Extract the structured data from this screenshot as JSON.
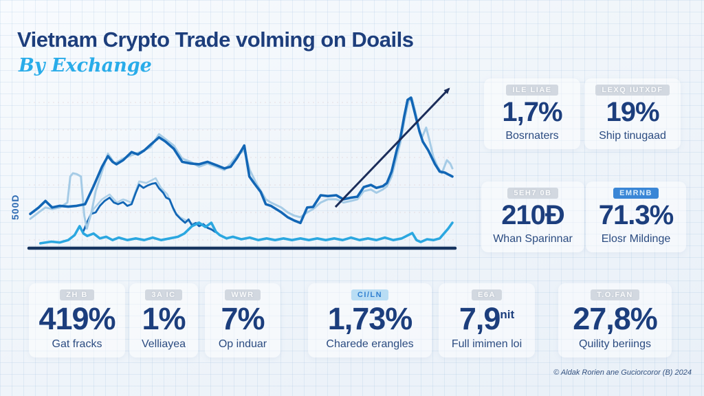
{
  "header": {
    "title": "Vietnam Crypto Trade volming on Doails",
    "subtitle": "By  Exchange"
  },
  "footer": {
    "credit": "© Aldak Rorien ane Guciorcoror (B) 2024"
  },
  "chart_data": {
    "type": "line",
    "title": "Vietnam Crypto Trade volming on Doails — By Exchange",
    "xlabel": "",
    "ylabel": "500D",
    "x_tick_labels": [],
    "ylim": [
      0,
      1
    ],
    "grid": "fine blue graph-paper background with faint dashed horizontal rules",
    "legend_position": "none",
    "baseline_color": "#16345f",
    "grid_rule_color": "#dcc9cc",
    "trend_arrow": {
      "from": [
        72.3,
        0.253
      ],
      "to": [
        99.2,
        0.979
      ],
      "color": "#1b2d5a",
      "width": 3
    },
    "series": [
      {
        "name": "mid-exchange-shadow",
        "color": "#aed0e8",
        "width": 2.6,
        "points": [
          [
            13,
            0.12
          ],
          [
            15,
            0.24
          ],
          [
            17,
            0.3
          ],
          [
            18.8,
            0.33
          ],
          [
            20.5,
            0.28
          ],
          [
            22,
            0.3
          ],
          [
            24,
            0.28
          ],
          [
            25.8,
            0.41
          ],
          [
            27.5,
            0.4
          ],
          [
            29.7,
            0.43
          ],
          [
            31,
            0.37
          ],
          [
            32.5,
            0.33
          ],
          [
            34,
            0.23
          ],
          [
            35.5,
            0.19
          ],
          [
            37,
            0.17
          ],
          [
            38.5,
            0.15
          ],
          [
            40,
            0.16
          ],
          [
            41.5,
            0.13
          ],
          [
            43,
            0.12
          ]
        ]
      },
      {
        "name": "mid-exchange",
        "color": "#1266b5",
        "width": 2.8,
        "points": [
          [
            12.6,
            0.105
          ],
          [
            13.5,
            0.16
          ],
          [
            14.4,
            0.21
          ],
          [
            15.5,
            0.22
          ],
          [
            16.5,
            0.26
          ],
          [
            17.6,
            0.29
          ],
          [
            18.8,
            0.31
          ],
          [
            19.8,
            0.28
          ],
          [
            20.8,
            0.27
          ],
          [
            22,
            0.283
          ],
          [
            23,
            0.26
          ],
          [
            24,
            0.27
          ],
          [
            25,
            0.34
          ],
          [
            25.8,
            0.39
          ],
          [
            26.8,
            0.37
          ],
          [
            27.8,
            0.385
          ],
          [
            28.8,
            0.395
          ],
          [
            29.7,
            0.4
          ],
          [
            30.5,
            0.367
          ],
          [
            31.5,
            0.34
          ],
          [
            32.2,
            0.31
          ],
          [
            33,
            0.3
          ],
          [
            33.8,
            0.25
          ],
          [
            34.6,
            0.207
          ],
          [
            35.6,
            0.18
          ],
          [
            36.7,
            0.156
          ],
          [
            37.5,
            0.177
          ],
          [
            38.3,
            0.14
          ],
          [
            39.2,
            0.155
          ],
          [
            40,
            0.135
          ],
          [
            41,
            0.148
          ],
          [
            42,
            0.125
          ],
          [
            43,
            0.114
          ],
          [
            43.8,
            0.1
          ]
        ]
      },
      {
        "name": "main-exchange-shadow",
        "color": "#a5cbe6",
        "width": 3,
        "points": [
          [
            0,
            0.18
          ],
          [
            2,
            0.22
          ],
          [
            3.6,
            0.25
          ],
          [
            5.2,
            0.24
          ],
          [
            7,
            0.25
          ],
          [
            8.8,
            0.28
          ],
          [
            9.5,
            0.44
          ],
          [
            10.1,
            0.46
          ],
          [
            11,
            0.455
          ],
          [
            12,
            0.44
          ],
          [
            12.8,
            0.2
          ],
          [
            13.4,
            0.12
          ],
          [
            14.5,
            0.22
          ],
          [
            15.5,
            0.35
          ],
          [
            17,
            0.47
          ],
          [
            18.4,
            0.58
          ],
          [
            20,
            0.52
          ],
          [
            22,
            0.55
          ],
          [
            24,
            0.57
          ],
          [
            26,
            0.59
          ],
          [
            28.5,
            0.62
          ],
          [
            30.5,
            0.7
          ],
          [
            32,
            0.67
          ],
          [
            34,
            0.63
          ],
          [
            36,
            0.55
          ],
          [
            38,
            0.53
          ],
          [
            40,
            0.5
          ],
          [
            42,
            0.52
          ],
          [
            44,
            0.5
          ],
          [
            46,
            0.48
          ],
          [
            47.5,
            0.52
          ],
          [
            49,
            0.57
          ],
          [
            50.7,
            0.6
          ],
          [
            52,
            0.48
          ],
          [
            53.5,
            0.4
          ],
          [
            55.8,
            0.3
          ],
          [
            57,
            0.28
          ],
          [
            59.5,
            0.25
          ],
          [
            61,
            0.22
          ],
          [
            62.5,
            0.2
          ],
          [
            64,
            0.19
          ],
          [
            65.6,
            0.22
          ],
          [
            67,
            0.24
          ],
          [
            68.8,
            0.28
          ],
          [
            70.5,
            0.3
          ],
          [
            72.5,
            0.3
          ],
          [
            74.2,
            0.28
          ],
          [
            76,
            0.29
          ],
          [
            77.5,
            0.3
          ],
          [
            79,
            0.35
          ],
          [
            80.7,
            0.36
          ],
          [
            82,
            0.34
          ],
          [
            83.5,
            0.36
          ],
          [
            84.5,
            0.38
          ],
          [
            85.6,
            0.44
          ],
          [
            86.8,
            0.56
          ],
          [
            87.7,
            0.65
          ],
          [
            88.6,
            0.78
          ],
          [
            89.6,
            0.9
          ],
          [
            90.4,
            0.92
          ],
          [
            91.2,
            0.84
          ],
          [
            92,
            0.74
          ],
          [
            92.8,
            0.68
          ],
          [
            93.8,
            0.74
          ],
          [
            94.6,
            0.66
          ],
          [
            95.5,
            0.56
          ],
          [
            96.5,
            0.5
          ],
          [
            97.5,
            0.46
          ],
          [
            98.7,
            0.54
          ],
          [
            99.5,
            0.52
          ],
          [
            100,
            0.49
          ]
        ]
      },
      {
        "name": "main-exchange",
        "color": "#1266b5",
        "width": 3.6,
        "points": [
          [
            0,
            0.21
          ],
          [
            2,
            0.25
          ],
          [
            3.6,
            0.29
          ],
          [
            5.2,
            0.25
          ],
          [
            7,
            0.26
          ],
          [
            9,
            0.255
          ],
          [
            11,
            0.26
          ],
          [
            13,
            0.27
          ],
          [
            15,
            0.38
          ],
          [
            17,
            0.5
          ],
          [
            18.4,
            0.565
          ],
          [
            19.5,
            0.53
          ],
          [
            20.4,
            0.515
          ],
          [
            22,
            0.54
          ],
          [
            24,
            0.59
          ],
          [
            25.5,
            0.575
          ],
          [
            27,
            0.6
          ],
          [
            28.5,
            0.635
          ],
          [
            30.5,
            0.68
          ],
          [
            32,
            0.655
          ],
          [
            34,
            0.61
          ],
          [
            36,
            0.53
          ],
          [
            38,
            0.52
          ],
          [
            40,
            0.515
          ],
          [
            42,
            0.53
          ],
          [
            44,
            0.51
          ],
          [
            46,
            0.49
          ],
          [
            47.5,
            0.5
          ],
          [
            49,
            0.555
          ],
          [
            50.7,
            0.63
          ],
          [
            51.9,
            0.44
          ],
          [
            53,
            0.4
          ],
          [
            54.6,
            0.345
          ],
          [
            55.8,
            0.27
          ],
          [
            57,
            0.26
          ],
          [
            59.5,
            0.22
          ],
          [
            61,
            0.19
          ],
          [
            62.5,
            0.17
          ],
          [
            64,
            0.155
          ],
          [
            65.6,
            0.25
          ],
          [
            67,
            0.253
          ],
          [
            68.8,
            0.325
          ],
          [
            70.5,
            0.32
          ],
          [
            72.5,
            0.325
          ],
          [
            74.2,
            0.3
          ],
          [
            76,
            0.31
          ],
          [
            77.5,
            0.316
          ],
          [
            79,
            0.375
          ],
          [
            80.7,
            0.388
          ],
          [
            82,
            0.37
          ],
          [
            83.5,
            0.38
          ],
          [
            84.5,
            0.4
          ],
          [
            85.6,
            0.47
          ],
          [
            86.8,
            0.6
          ],
          [
            87.7,
            0.68
          ],
          [
            88.6,
            0.81
          ],
          [
            89.4,
            0.91
          ],
          [
            90.2,
            0.924
          ],
          [
            91.4,
            0.8
          ],
          [
            92.2,
            0.717
          ],
          [
            93,
            0.654
          ],
          [
            94.3,
            0.6
          ],
          [
            95.9,
            0.515
          ],
          [
            97,
            0.47
          ],
          [
            98.2,
            0.464
          ],
          [
            99.2,
            0.45
          ],
          [
            100,
            0.44
          ]
        ]
      },
      {
        "name": "low-exchange",
        "color": "#2ba7e0",
        "width": 3.6,
        "points": [
          [
            2.4,
            0.03
          ],
          [
            5,
            0.04
          ],
          [
            7,
            0.035
          ],
          [
            9,
            0.05
          ],
          [
            10.5,
            0.08
          ],
          [
            11.7,
            0.135
          ],
          [
            12.6,
            0.09
          ],
          [
            13.5,
            0.075
          ],
          [
            15,
            0.09
          ],
          [
            16.5,
            0.06
          ],
          [
            18,
            0.07
          ],
          [
            19.5,
            0.05
          ],
          [
            21,
            0.065
          ],
          [
            23,
            0.05
          ],
          [
            25,
            0.06
          ],
          [
            27,
            0.05
          ],
          [
            29,
            0.065
          ],
          [
            31,
            0.05
          ],
          [
            33,
            0.06
          ],
          [
            35,
            0.07
          ],
          [
            36.5,
            0.09
          ],
          [
            38.3,
            0.135
          ],
          [
            40,
            0.156
          ],
          [
            41.5,
            0.13
          ],
          [
            42.9,
            0.156
          ],
          [
            44,
            0.1
          ],
          [
            44.9,
            0.08
          ],
          [
            46.5,
            0.06
          ],
          [
            48,
            0.07
          ],
          [
            50,
            0.055
          ],
          [
            52,
            0.065
          ],
          [
            54,
            0.05
          ],
          [
            56,
            0.06
          ],
          [
            58,
            0.05
          ],
          [
            60,
            0.06
          ],
          [
            62,
            0.05
          ],
          [
            64,
            0.06
          ],
          [
            66,
            0.05
          ],
          [
            68,
            0.06
          ],
          [
            70,
            0.05
          ],
          [
            72,
            0.06
          ],
          [
            74,
            0.05
          ],
          [
            76,
            0.065
          ],
          [
            78,
            0.05
          ],
          [
            80,
            0.06
          ],
          [
            82,
            0.05
          ],
          [
            84,
            0.065
          ],
          [
            86,
            0.05
          ],
          [
            88,
            0.06
          ],
          [
            90.5,
            0.093
          ],
          [
            91.5,
            0.05
          ],
          [
            92.5,
            0.038
          ],
          [
            94,
            0.055
          ],
          [
            95.5,
            0.05
          ],
          [
            97,
            0.06
          ],
          [
            98,
            0.09
          ],
          [
            99,
            0.12
          ],
          [
            100,
            0.156
          ]
        ]
      }
    ]
  },
  "stats_right": [
    {
      "id": "bosrnaters",
      "badge": "ILE LIAE",
      "badge_style": "grey",
      "value": "1,7%",
      "suffix": "",
      "label": "Bosrnaters",
      "pos": "pos-r1"
    },
    {
      "id": "ship-tinugaad",
      "badge": "LEXQ IUTXDF",
      "badge_style": "grey",
      "value": "19%",
      "suffix": "",
      "label": "Ship tinugaad",
      "pos": "pos-r2"
    },
    {
      "id": "whan-sparinnar",
      "badge": "5EH7 0B",
      "badge_style": "grey",
      "value": "210Ð",
      "suffix": "",
      "label": "Whan Sparinnar",
      "pos": "pos-r3"
    },
    {
      "id": "elosr-mildinge",
      "badge": "EMRNB",
      "badge_style": "blue",
      "value": "71.3%",
      "suffix": "",
      "label": "Elosr Mildinge",
      "pos": "pos-r4"
    }
  ],
  "stats_bottom": [
    {
      "id": "gat-fracks",
      "badge": "ZH B",
      "badge_style": "grey",
      "value": "419%",
      "suffix": "",
      "label": "Gat fracks",
      "pos": "pos-b1"
    },
    {
      "id": "velliayea",
      "badge": "3A IC",
      "badge_style": "grey",
      "value": "1%",
      "suffix": "",
      "label": "Velliayea",
      "pos": "pos-b2"
    },
    {
      "id": "op-induar",
      "badge": "WWR",
      "badge_style": "grey",
      "value": "7%",
      "suffix": "",
      "label": "Op induar",
      "pos": "pos-b3"
    },
    {
      "id": "charede-erangles",
      "badge": "CI/LN",
      "badge_style": "lightblue",
      "value": "1,73%",
      "suffix": "",
      "label": "Charede erangles",
      "pos": "pos-b4"
    },
    {
      "id": "full-imimen-loi",
      "badge": "E6A",
      "badge_style": "grey",
      "value": "7,9",
      "suffix": "nit",
      "label": "Full imimen loi",
      "pos": "pos-b5"
    },
    {
      "id": "quility-beriings",
      "badge": "T.O.FAN",
      "badge_style": "grey",
      "value": "27,8%",
      "suffix": "",
      "label": "Quility beriings",
      "pos": "pos-b6"
    }
  ]
}
